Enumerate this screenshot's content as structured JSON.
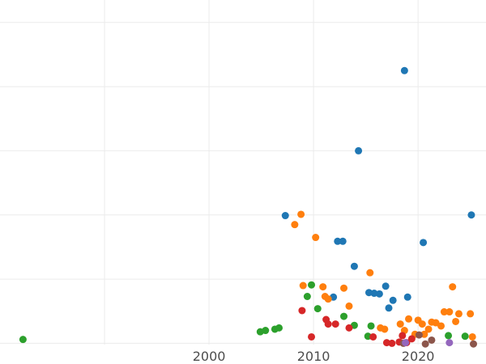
{
  "chart_data": {
    "type": "scatter",
    "title": "",
    "xlabel": "",
    "ylabel": "",
    "xlim": [
      1980,
      2026.5
    ],
    "ylim": [
      -0.02,
      5.35
    ],
    "x_ticks": [
      2000,
      2010,
      2020
    ],
    "x_tick_labels": [
      "2000",
      "2010",
      "2020"
    ],
    "grid": true,
    "legend": "none",
    "series": [
      {
        "color": "#1f77b4",
        "points": [
          [
            2007.3,
            1.99
          ],
          [
            2012.3,
            1.59
          ],
          [
            2012.8,
            1.59
          ],
          [
            2013.9,
            1.2
          ],
          [
            2014.3,
            3.0
          ],
          [
            2015.3,
            0.79
          ],
          [
            2015.8,
            0.78
          ],
          [
            2016.3,
            0.77
          ],
          [
            2016.9,
            0.89
          ],
          [
            2017.2,
            0.55
          ],
          [
            2017.6,
            0.67
          ],
          [
            2018.7,
            4.25
          ],
          [
            2019.0,
            0.72
          ],
          [
            2020.5,
            1.57
          ],
          [
            2025.1,
            2.0
          ],
          [
            2011.9,
            0.72
          ]
        ]
      },
      {
        "color": "#ff7f0e",
        "points": [
          [
            2008.2,
            1.85
          ],
          [
            2008.8,
            2.01
          ],
          [
            2009.0,
            0.9
          ],
          [
            2010.2,
            1.65
          ],
          [
            2010.9,
            0.88
          ],
          [
            2011.1,
            0.73
          ],
          [
            2011.4,
            0.69
          ],
          [
            2012.9,
            0.86
          ],
          [
            2013.4,
            0.58
          ],
          [
            2015.4,
            1.1
          ],
          [
            2016.4,
            0.24
          ],
          [
            2016.8,
            0.22
          ],
          [
            2018.3,
            0.3
          ],
          [
            2018.7,
            0.2
          ],
          [
            2019.1,
            0.38
          ],
          [
            2019.7,
            0.14
          ],
          [
            2020.0,
            0.36
          ],
          [
            2020.4,
            0.3
          ],
          [
            2020.6,
            0.14
          ],
          [
            2021.0,
            0.22
          ],
          [
            2021.3,
            0.33
          ],
          [
            2021.7,
            0.32
          ],
          [
            2022.2,
            0.27
          ],
          [
            2022.5,
            0.49
          ],
          [
            2023.0,
            0.49
          ],
          [
            2023.3,
            0.88
          ],
          [
            2023.6,
            0.34
          ],
          [
            2023.9,
            0.46
          ],
          [
            2025.0,
            0.46
          ],
          [
            2025.2,
            0.1
          ]
        ]
      },
      {
        "color": "#2ca02c",
        "points": [
          [
            1982.2,
            0.06
          ],
          [
            2004.9,
            0.18
          ],
          [
            2005.4,
            0.2
          ],
          [
            2006.3,
            0.22
          ],
          [
            2006.7,
            0.24
          ],
          [
            2009.4,
            0.73
          ],
          [
            2009.8,
            0.91
          ],
          [
            2010.4,
            0.54
          ],
          [
            2012.9,
            0.42
          ],
          [
            2013.9,
            0.28
          ],
          [
            2015.2,
            0.11
          ],
          [
            2015.5,
            0.27
          ],
          [
            2022.9,
            0.12
          ],
          [
            2024.5,
            0.11
          ]
        ]
      },
      {
        "color": "#d62728",
        "points": [
          [
            2008.9,
            0.51
          ],
          [
            2009.8,
            0.1
          ],
          [
            2011.2,
            0.37
          ],
          [
            2011.4,
            0.3
          ],
          [
            2012.1,
            0.3
          ],
          [
            2013.4,
            0.24
          ],
          [
            2015.7,
            0.1
          ],
          [
            2017.0,
            0.01
          ],
          [
            2017.5,
            0.0
          ],
          [
            2018.2,
            0.02
          ],
          [
            2018.5,
            0.12
          ],
          [
            2018.9,
            0.01
          ],
          [
            2019.4,
            0.07
          ]
        ]
      },
      {
        "color": "#8c564b",
        "points": [
          [
            2018.6,
            0.0
          ],
          [
            2020.1,
            0.13
          ],
          [
            2020.7,
            -0.01
          ],
          [
            2021.3,
            0.05
          ],
          [
            2025.3,
            -0.01
          ]
        ]
      },
      {
        "color": "#9467bd",
        "points": [
          [
            2018.8,
            0.01
          ],
          [
            2023.0,
            0.01
          ]
        ]
      }
    ]
  }
}
